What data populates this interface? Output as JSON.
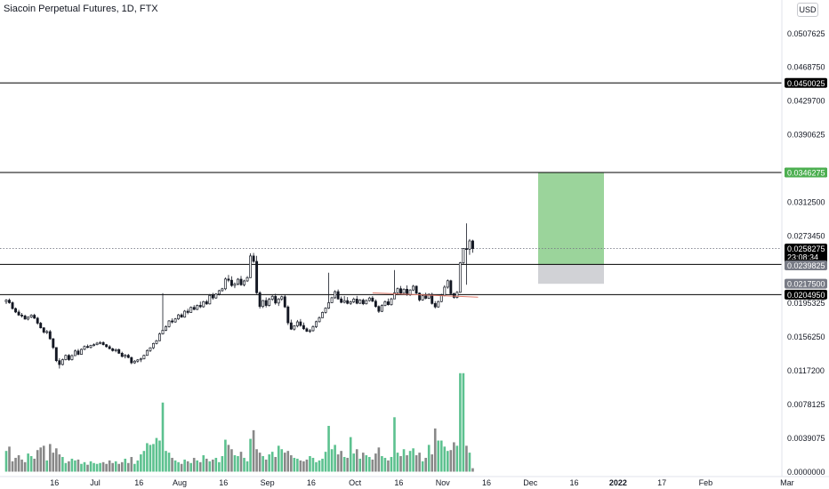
{
  "header": {
    "symbol_title": "Siacoin Perpetual Futures, 1D, FTX",
    "currency_button": "USD"
  },
  "colors": {
    "up": "#26a69a",
    "down": "#131722",
    "vol_up": "#5cc18f",
    "vol_down": "#888888",
    "grid_line": "#000000",
    "target_zone": "#9bd49b",
    "stop_zone": "#d1d2d6",
    "badge_black": "#000000",
    "badge_green": "#4caf50",
    "badge_gray": "#787b86",
    "price_dotted": "#787b86",
    "trend_line": "#e07a6a"
  },
  "chart_data": {
    "type": "candlestick",
    "title": "Siacoin Perpetual Futures, 1D, FTX",
    "y_axis": {
      "ticks": [
        "0.0507625",
        "0.0468750",
        "0.0429700",
        "0.0390625",
        "0.0312500",
        "0.0273450",
        "0.0195325",
        "0.0156250",
        "0.0117200",
        "0.0078125",
        "0.0039075",
        "0.0000000"
      ],
      "range": [
        0,
        0.0508
      ]
    },
    "x_axis": {
      "ticks": [
        "16",
        "Jul",
        "16",
        "Aug",
        "16",
        "Sep",
        "16",
        "Oct",
        "16",
        "Nov",
        "16",
        "Dec",
        "16",
        "2022",
        "17",
        "Feb",
        "Mar"
      ]
    },
    "horizontal_levels": [
      {
        "price": 0.0450025,
        "label": "0.0450025",
        "badge": "black"
      },
      {
        "price": 0.03463,
        "label": "0.0346300",
        "badge": "black"
      },
      {
        "price": 0.0239925,
        "label": "0.0239925",
        "badge": "black"
      },
      {
        "price": 0.020495,
        "label": "0.0204950",
        "badge": "black"
      }
    ],
    "position": {
      "entry": 0.0239825,
      "target": 0.0346275,
      "stop": 0.02175,
      "entry_label": "0.0239825",
      "target_label": "0.0346275",
      "stop_label": "0.0217500"
    },
    "last_price": {
      "value": 0.0258275,
      "label": "0.0258275",
      "countdown": "23:08:34"
    },
    "trend_line": {
      "from": 0.0207,
      "to": 0.0202
    },
    "candles": [
      [
        0.01968,
        0.01998,
        0.0194,
        0.01985
      ],
      [
        0.01985,
        0.02005,
        0.01944,
        0.01956
      ],
      [
        0.01956,
        0.01972,
        0.01877,
        0.01888
      ],
      [
        0.01888,
        0.019,
        0.01836,
        0.01848
      ],
      [
        0.01848,
        0.01873,
        0.01802,
        0.01813
      ],
      [
        0.01813,
        0.01837,
        0.01785,
        0.01803
      ],
      [
        0.01803,
        0.01818,
        0.0176,
        0.01766
      ],
      [
        0.01766,
        0.01796,
        0.01751,
        0.0179
      ],
      [
        0.0179,
        0.01823,
        0.01777,
        0.01811
      ],
      [
        0.01811,
        0.01828,
        0.01767,
        0.01777
      ],
      [
        0.01777,
        0.01792,
        0.01701,
        0.01719
      ],
      [
        0.01719,
        0.01734,
        0.01657,
        0.01665
      ],
      [
        0.01665,
        0.01672,
        0.01598,
        0.01615
      ],
      [
        0.01615,
        0.01641,
        0.01593,
        0.01621
      ],
      [
        0.01621,
        0.0164,
        0.01526,
        0.01538
      ],
      [
        0.01538,
        0.01547,
        0.01419,
        0.01437
      ],
      [
        0.01437,
        0.0144,
        0.01268,
        0.01285
      ],
      [
        0.01285,
        0.01314,
        0.01194,
        0.0124
      ],
      [
        0.0124,
        0.01309,
        0.0123,
        0.01297
      ],
      [
        0.01297,
        0.01357,
        0.01289,
        0.01346
      ],
      [
        0.01346,
        0.01361,
        0.01283,
        0.01297
      ],
      [
        0.01297,
        0.01357,
        0.01287,
        0.01343
      ],
      [
        0.01343,
        0.01414,
        0.0134,
        0.01397
      ],
      [
        0.01397,
        0.0142,
        0.01347,
        0.01358
      ],
      [
        0.01358,
        0.01426,
        0.01355,
        0.01416
      ],
      [
        0.01416,
        0.01462,
        0.01406,
        0.01449
      ],
      [
        0.01449,
        0.01472,
        0.01429,
        0.01438
      ],
      [
        0.01438,
        0.01469,
        0.01425,
        0.01462
      ],
      [
        0.01462,
        0.01485,
        0.01448,
        0.0147
      ],
      [
        0.0147,
        0.01501,
        0.01463,
        0.01487
      ],
      [
        0.01487,
        0.0151,
        0.01475,
        0.01495
      ],
      [
        0.01495,
        0.01509,
        0.01461,
        0.0147
      ],
      [
        0.0147,
        0.01478,
        0.01436,
        0.01447
      ],
      [
        0.01447,
        0.01465,
        0.01417,
        0.01423
      ],
      [
        0.01423,
        0.01434,
        0.0139,
        0.01401
      ],
      [
        0.01401,
        0.01425,
        0.01381,
        0.01413
      ],
      [
        0.01413,
        0.01425,
        0.01363,
        0.01371
      ],
      [
        0.01371,
        0.01388,
        0.01322,
        0.01334
      ],
      [
        0.01334,
        0.01363,
        0.01311,
        0.01347
      ],
      [
        0.01347,
        0.01364,
        0.01312,
        0.01322
      ],
      [
        0.01322,
        0.0133,
        0.01244,
        0.0126
      ],
      [
        0.0126,
        0.01292,
        0.01248,
        0.01279
      ],
      [
        0.01279,
        0.01302,
        0.01262,
        0.01294
      ],
      [
        0.01294,
        0.0132,
        0.01268,
        0.01306
      ],
      [
        0.01306,
        0.01355,
        0.01299,
        0.01346
      ],
      [
        0.01346,
        0.01416,
        0.01342,
        0.01402
      ],
      [
        0.01402,
        0.01441,
        0.01384,
        0.01434
      ],
      [
        0.01434,
        0.01492,
        0.01419,
        0.01484
      ],
      [
        0.01484,
        0.01526,
        0.01473,
        0.01516
      ],
      [
        0.01516,
        0.01609,
        0.0151,
        0.01595
      ],
      [
        0.01595,
        0.02066,
        0.01588,
        0.01637
      ],
      [
        0.01637,
        0.01693,
        0.01627,
        0.01679
      ],
      [
        0.01679,
        0.01755,
        0.01668,
        0.01745
      ],
      [
        0.01745,
        0.01774,
        0.01716,
        0.01733
      ],
      [
        0.01733,
        0.01779,
        0.01724,
        0.01768
      ],
      [
        0.01768,
        0.01825,
        0.01757,
        0.01815
      ],
      [
        0.01815,
        0.01833,
        0.01781,
        0.01789
      ],
      [
        0.01789,
        0.01871,
        0.01782,
        0.01858
      ],
      [
        0.01858,
        0.01887,
        0.01822,
        0.01843
      ],
      [
        0.01843,
        0.01912,
        0.01839,
        0.01902
      ],
      [
        0.01902,
        0.01928,
        0.01869,
        0.01878
      ],
      [
        0.01878,
        0.01935,
        0.0187,
        0.01925
      ],
      [
        0.01925,
        0.01969,
        0.01893,
        0.01909
      ],
      [
        0.01909,
        0.01978,
        0.01899,
        0.01968
      ],
      [
        0.01968,
        0.0199,
        0.01931,
        0.01942
      ],
      [
        0.01942,
        0.02056,
        0.01935,
        0.0204
      ],
      [
        0.0204,
        0.0207,
        0.0199,
        0.02011
      ],
      [
        0.02011,
        0.02066,
        0.02001,
        0.02056
      ],
      [
        0.02056,
        0.02106,
        0.0204,
        0.02095
      ],
      [
        0.02095,
        0.02128,
        0.02083,
        0.02117
      ],
      [
        0.02117,
        0.02248,
        0.02101,
        0.0223
      ],
      [
        0.0223,
        0.02277,
        0.02193,
        0.02216
      ],
      [
        0.02216,
        0.02262,
        0.02139,
        0.02155
      ],
      [
        0.02155,
        0.02191,
        0.02124,
        0.02173
      ],
      [
        0.02173,
        0.02241,
        0.02156,
        0.02228
      ],
      [
        0.02228,
        0.02266,
        0.02151,
        0.02163
      ],
      [
        0.02163,
        0.02222,
        0.02145,
        0.02208
      ],
      [
        0.02208,
        0.02264,
        0.02196,
        0.02246
      ],
      [
        0.02246,
        0.02528,
        0.02242,
        0.02497
      ],
      [
        0.02497,
        0.02532,
        0.02417,
        0.02434
      ],
      [
        0.02434,
        0.02498,
        0.02057,
        0.02071
      ],
      [
        0.02071,
        0.02089,
        0.01888,
        0.01912
      ],
      [
        0.01912,
        0.01988,
        0.01894,
        0.01981
      ],
      [
        0.01981,
        0.02017,
        0.01901,
        0.01924
      ],
      [
        0.01924,
        0.02013,
        0.01912,
        0.01996
      ],
      [
        0.01996,
        0.02043,
        0.01978,
        0.0203
      ],
      [
        0.0203,
        0.02059,
        0.01933,
        0.01952
      ],
      [
        0.01952,
        0.0201,
        0.01918,
        0.01999
      ],
      [
        0.01999,
        0.02038,
        0.01978,
        0.02025
      ],
      [
        0.02025,
        0.02049,
        0.01894,
        0.01907
      ],
      [
        0.01907,
        0.01925,
        0.01698,
        0.01723
      ],
      [
        0.01723,
        0.0176,
        0.0164,
        0.0165
      ],
      [
        0.0165,
        0.01696,
        0.01633,
        0.01688
      ],
      [
        0.01688,
        0.01756,
        0.0167,
        0.01734
      ],
      [
        0.01734,
        0.01767,
        0.01678,
        0.01692
      ],
      [
        0.01692,
        0.01726,
        0.0164,
        0.01654
      ],
      [
        0.01654,
        0.0167,
        0.01616,
        0.01625
      ],
      [
        0.01625,
        0.01652,
        0.01607,
        0.01632
      ],
      [
        0.01632,
        0.01695,
        0.0162,
        0.01678
      ],
      [
        0.01678,
        0.01749,
        0.01662,
        0.01736
      ],
      [
        0.01736,
        0.01798,
        0.01727,
        0.01782
      ],
      [
        0.01782,
        0.01853,
        0.01779,
        0.01843
      ],
      [
        0.01843,
        0.01903,
        0.0183,
        0.01893
      ],
      [
        0.01893,
        0.02303,
        0.01884,
        0.01956
      ],
      [
        0.01956,
        0.02025,
        0.0195,
        0.02013
      ],
      [
        0.02013,
        0.021,
        0.02001,
        0.02084
      ],
      [
        0.02084,
        0.02109,
        0.01989,
        0.02
      ],
      [
        0.02,
        0.02028,
        0.01949,
        0.0196
      ],
      [
        0.0196,
        0.02034,
        0.01948,
        0.0198
      ],
      [
        0.0198,
        0.02021,
        0.01937,
        0.01948
      ],
      [
        0.01948,
        0.0198,
        0.0193,
        0.01966
      ],
      [
        0.01966,
        0.02015,
        0.01951,
        0.01998
      ],
      [
        0.01998,
        0.02035,
        0.01938,
        0.01949
      ],
      [
        0.01949,
        0.01999,
        0.01941,
        0.01986
      ],
      [
        0.01986,
        0.02004,
        0.01928,
        0.01943
      ],
      [
        0.01943,
        0.01994,
        0.01935,
        0.01981
      ],
      [
        0.01981,
        0.02025,
        0.01968,
        0.0201
      ],
      [
        0.0201,
        0.02032,
        0.01963,
        0.01973
      ],
      [
        0.01973,
        0.01994,
        0.01898,
        0.01912
      ],
      [
        0.01912,
        0.01925,
        0.01837,
        0.01856
      ],
      [
        0.01856,
        0.01937,
        0.01847,
        0.01924
      ],
      [
        0.01924,
        0.01982,
        0.01915,
        0.01967
      ],
      [
        0.01967,
        0.02005,
        0.01923,
        0.01933
      ],
      [
        0.01933,
        0.02013,
        0.01922,
        0.02
      ],
      [
        0.02,
        0.02334,
        0.01998,
        0.02071
      ],
      [
        0.02071,
        0.02132,
        0.0206,
        0.02118
      ],
      [
        0.02118,
        0.0215,
        0.02054,
        0.02066
      ],
      [
        0.02066,
        0.02123,
        0.02049,
        0.02112
      ],
      [
        0.02112,
        0.02156,
        0.02036,
        0.02046
      ],
      [
        0.02046,
        0.02112,
        0.02034,
        0.02103
      ],
      [
        0.02103,
        0.02162,
        0.02091,
        0.02147
      ],
      [
        0.02147,
        0.02155,
        0.02053,
        0.02067
      ],
      [
        0.02067,
        0.02075,
        0.0197,
        0.01988
      ],
      [
        0.01988,
        0.02055,
        0.01979,
        0.02036
      ],
      [
        0.02036,
        0.02072,
        0.01995,
        0.02007
      ],
      [
        0.02007,
        0.02065,
        0.01998,
        0.02052
      ],
      [
        0.02052,
        0.02071,
        0.01934,
        0.01947
      ],
      [
        0.01947,
        0.01974,
        0.01889,
        0.01907
      ],
      [
        0.01907,
        0.0198,
        0.01898,
        0.01969
      ],
      [
        0.01969,
        0.02059,
        0.01961,
        0.02043
      ],
      [
        0.02043,
        0.02158,
        0.0203,
        0.02136
      ],
      [
        0.02136,
        0.02225,
        0.02118,
        0.0221
      ],
      [
        0.0221,
        0.02222,
        0.02046,
        0.02061
      ],
      [
        0.02061,
        0.02073,
        0.02003,
        0.02018
      ],
      [
        0.02018,
        0.02091,
        0.02005,
        0.02076
      ],
      [
        0.02076,
        0.02428,
        0.02071,
        0.02418
      ],
      [
        0.02418,
        0.02589,
        0.02401,
        0.02582
      ],
      [
        0.02582,
        0.02874,
        0.02164,
        0.02575
      ],
      [
        0.02575,
        0.02693,
        0.0251,
        0.02671
      ],
      [
        0.02671,
        0.02685,
        0.02535,
        0.02583
      ]
    ],
    "volume": [
      0.0024,
      0.0029,
      0.0012,
      0.0016,
      0.0019,
      0.0014,
      0.0011,
      0.0021,
      0.0018,
      0.0015,
      0.0025,
      0.0028,
      0.003,
      0.0013,
      0.0032,
      0.0022,
      0.0027,
      0.002,
      0.0017,
      0.001,
      0.0012,
      0.0015,
      0.0013,
      0.0014,
      0.0009,
      0.0011,
      0.0008,
      0.0012,
      0.001,
      0.0009,
      0.001,
      0.0011,
      0.0009,
      0.0013,
      0.001,
      0.0012,
      0.0009,
      0.0011,
      0.0015,
      0.001,
      0.0017,
      0.0009,
      0.0013,
      0.002,
      0.0024,
      0.0033,
      0.0031,
      0.0032,
      0.0039,
      0.0036,
      0.008,
      0.0024,
      0.0022,
      0.0016,
      0.0013,
      0.0011,
      0.0009,
      0.0014,
      0.0012,
      0.001,
      0.0016,
      0.0013,
      0.0011,
      0.0019,
      0.0015,
      0.0012,
      0.0014,
      0.0016,
      0.0011,
      0.0018,
      0.0037,
      0.0031,
      0.0026,
      0.0019,
      0.0018,
      0.0023,
      0.0016,
      0.0012,
      0.0038,
      0.0048,
      0.0026,
      0.0022,
      0.0018,
      0.0014,
      0.002,
      0.0023,
      0.0017,
      0.003,
      0.0026,
      0.0022,
      0.0024,
      0.0019,
      0.0016,
      0.0015,
      0.0013,
      0.0012,
      0.0014,
      0.0018,
      0.0016,
      0.0011,
      0.0013,
      0.0015,
      0.0023,
      0.0053,
      0.0026,
      0.0031,
      0.002,
      0.0024,
      0.0017,
      0.0016,
      0.004,
      0.0021,
      0.0026,
      0.0015,
      0.0022,
      0.0019,
      0.0017,
      0.0014,
      0.0021,
      0.0028,
      0.0018,
      0.0016,
      0.0013,
      0.0017,
      0.0063,
      0.0022,
      0.0018,
      0.0026,
      0.0019,
      0.0024,
      0.0027,
      0.0019,
      0.0022,
      0.0012,
      0.0016,
      0.0031,
      0.002,
      0.005,
      0.0036,
      0.0036,
      0.0029,
      0.0024,
      0.0025,
      0.0034,
      0.003,
      0.0114,
      0.0114,
      0.003,
      0.0022,
      0.0004
    ]
  }
}
